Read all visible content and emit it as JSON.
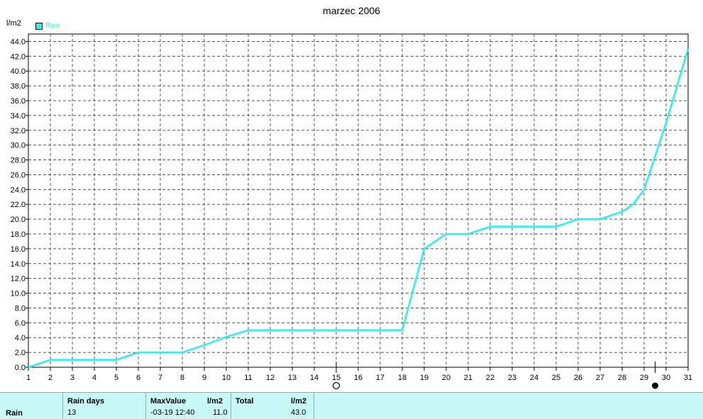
{
  "title": "marzec 2006",
  "unit": "l/m2",
  "legend": {
    "label": "Rain",
    "color": "#33eeee"
  },
  "chart_data": {
    "type": "line",
    "title": "marzec 2006",
    "ylabel": "l/m2",
    "x": [
      1,
      2,
      3,
      4,
      5,
      6,
      7,
      8,
      9,
      10,
      11,
      12,
      13,
      14,
      15,
      16,
      17,
      18,
      19,
      20,
      21,
      22,
      23,
      24,
      25,
      26,
      27,
      28,
      29,
      30,
      31
    ],
    "series": [
      {
        "name": "Rain",
        "color": "#33eeee",
        "points": [
          [
            1,
            0
          ],
          [
            2,
            1
          ],
          [
            3,
            1
          ],
          [
            4,
            1
          ],
          [
            5,
            1
          ],
          [
            6,
            2
          ],
          [
            7,
            2
          ],
          [
            8,
            2
          ],
          [
            9,
            3
          ],
          [
            10,
            4.1
          ],
          [
            11,
            5
          ],
          [
            12,
            5
          ],
          [
            13,
            5
          ],
          [
            14,
            5
          ],
          [
            15,
            5
          ],
          [
            16,
            5
          ],
          [
            17,
            5
          ],
          [
            18,
            5
          ],
          [
            19,
            16
          ],
          [
            20,
            18
          ],
          [
            21,
            18
          ],
          [
            22,
            19
          ],
          [
            23,
            19
          ],
          [
            24,
            19
          ],
          [
            25,
            19
          ],
          [
            26,
            20
          ],
          [
            27,
            20
          ],
          [
            28,
            21
          ],
          [
            28.5,
            22
          ],
          [
            29,
            24
          ],
          [
            30,
            33
          ],
          [
            31,
            43
          ]
        ]
      }
    ],
    "xlim": [
      1,
      31
    ],
    "ylim": [
      0,
      45
    ],
    "yticks": [
      "0.0",
      "2.0",
      "4.0",
      "6.0",
      "8.0",
      "10.0",
      "12.0",
      "14.0",
      "16.0",
      "18.0",
      "20.0",
      "22.0",
      "24.0",
      "26.0",
      "28.0",
      "30.0",
      "32.0",
      "34.0",
      "36.0",
      "38.0",
      "40.0",
      "42.0",
      "44.0"
    ],
    "xticks": [
      "1",
      "2",
      "3",
      "4",
      "5",
      "6",
      "7",
      "8",
      "9",
      "10",
      "11",
      "12",
      "13",
      "14",
      "15",
      "16",
      "17",
      "18",
      "19",
      "20",
      "21",
      "22",
      "23",
      "24",
      "25",
      "26",
      "27",
      "28",
      "29",
      "30",
      "31"
    ],
    "moon_phases": [
      {
        "day": 15,
        "phase": "full-moon"
      },
      {
        "day": 29.5,
        "phase": "new-moon"
      }
    ],
    "grid": true,
    "legend_position": "top-left"
  },
  "stats": {
    "row_label": "Rain",
    "rain_days_header": "Rain days",
    "rain_days_value": "13",
    "max_header": "MaxValue",
    "max_unit": "l/m2",
    "max_date": "-03-19  12:40",
    "max_value": "11.0",
    "total_header": "Total",
    "total_unit": "l/m2",
    "total_value": "43.0"
  }
}
